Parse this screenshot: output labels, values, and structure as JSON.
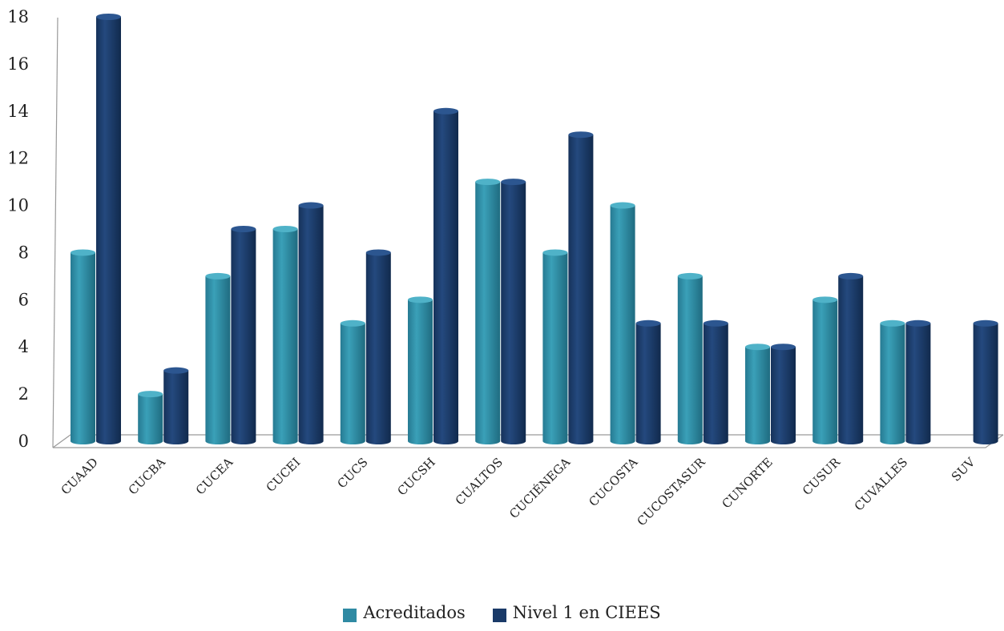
{
  "chart_data": {
    "type": "bar",
    "title": "",
    "xlabel": "",
    "ylabel": "",
    "ylim": [
      0,
      18
    ],
    "yticks": [
      "0",
      "2",
      "4",
      "6",
      "8",
      "10",
      "12",
      "14",
      "16",
      "18"
    ],
    "categories": [
      "CUAAD",
      "CUCBA",
      "CUCEA",
      "CUCEI",
      "CUCS",
      "CUCSH",
      "CUALTOS",
      "CUCIÉNEGA",
      "CUCOSTA",
      "CUCOSTASUR",
      "CUNORTE",
      "CUSUR",
      "CUVALLES",
      "SUV"
    ],
    "series": [
      {
        "name": "Acreditados",
        "color": "#2f8aa3",
        "values": [
          8,
          2,
          7,
          9,
          5,
          6,
          11,
          8,
          10,
          7,
          4,
          6,
          5,
          null
        ]
      },
      {
        "name": "Nivel 1 en CIEES",
        "color": "#1a3a68",
        "values": [
          18,
          3,
          9,
          10,
          8,
          14,
          11,
          13,
          5,
          5,
          4,
          7,
          5,
          5
        ]
      }
    ],
    "grid": false,
    "legend_position": "bottom",
    "style": "3d-cylinder"
  }
}
